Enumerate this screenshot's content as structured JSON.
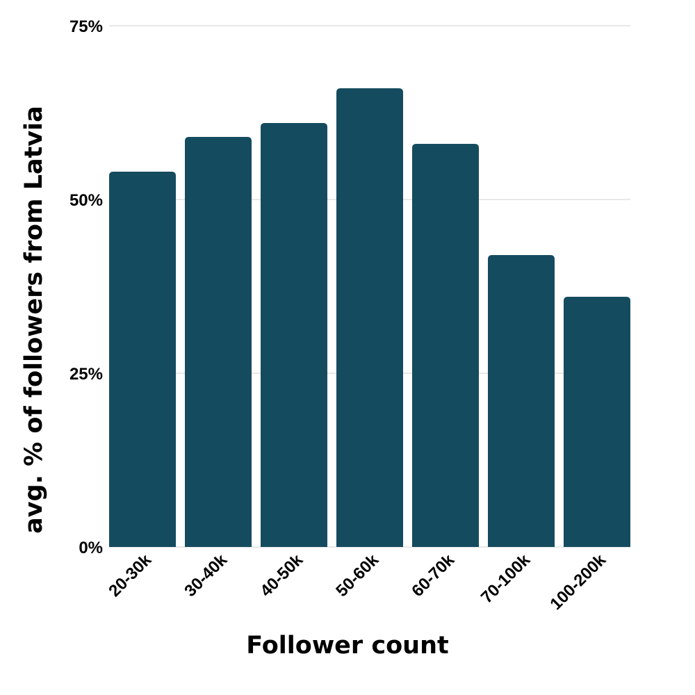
{
  "chart_data": {
    "type": "bar",
    "title": "",
    "xlabel": "Follower count",
    "ylabel": "avg. % of followers from Latvia",
    "categories": [
      "20-30k",
      "30-40k",
      "40-50k",
      "50-60k",
      "60-70k",
      "70-100k",
      "100-200k"
    ],
    "values": [
      54,
      59,
      61,
      66,
      58,
      42,
      36
    ],
    "ylim": [
      0,
      75
    ],
    "yticks": [
      0,
      25,
      50,
      75
    ],
    "ytick_labels": [
      "0%",
      "25%",
      "50%",
      "75%"
    ],
    "grid": true,
    "legend": "none",
    "bar_color": "#154b5e",
    "grid_color": "#d9d9d9"
  }
}
